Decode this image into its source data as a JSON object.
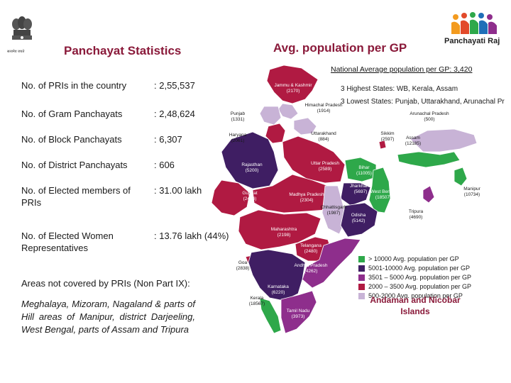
{
  "header": {
    "left_title": "Panchayat Statistics",
    "right_title": "Avg. population per GP",
    "emblem_caption": "सत्यमेव जयते",
    "logo_text": "Panchayati Raj"
  },
  "national_average": "National Average population per GP: 3,420",
  "highest": "3 Highest States: WB, Kerala, Assam",
  "lowest": "3 Lowest States: Punjab, Uttarakhand, Arunachal Pr",
  "stats": [
    {
      "label": "No. of PRIs in the country",
      "value": ": 2,55,537"
    },
    {
      "label": "No. of Gram Panchayats",
      "value": ": 2,48,624"
    },
    {
      "label": "No. of Block Panchayats",
      "value": ": 6,307"
    },
    {
      "label": "No. of District Panchayats",
      "value": ": 606"
    },
    {
      "label": "No. of Elected members of PRIs",
      "value": ": 31.00 lakh"
    },
    {
      "label": "No. of Elected Women Representatives",
      "value": ": 13.76 lakh (44%)"
    }
  ],
  "non_part_ix": {
    "heading": "Areas not covered by PRIs (Non Part IX):",
    "text": "Meghalaya, Mizoram, Nagaland & parts of Hill areas of Manipur, district Darjeeling, West Bengal, parts of Assam and Tripura"
  },
  "legend": [
    {
      "label": "> 10000 Avg. population per GP",
      "color": "#2ea84a"
    },
    {
      "label": "5001-10000 Avg. population per GP",
      "color": "#3f1e63"
    },
    {
      "label": "3501 – 5000 Avg. population per GP",
      "color": "#8e2e8c"
    },
    {
      "label": "2000 – 3500 Avg. population per GP",
      "color": "#b01a42"
    },
    {
      "label": "500-2000 Avg. population per GP",
      "color": "#c8b3d6"
    }
  ],
  "andaman": "Andaman and Nicobar Islands",
  "states": [
    {
      "name": "Jammu & Kashmir",
      "value": "(2170)",
      "category": "2000 – 3500"
    },
    {
      "name": "Himachal Pradesh",
      "value": "(1914)",
      "category": "500-2000"
    },
    {
      "name": "Punjab",
      "value": "(1331)",
      "category": "500-2000"
    },
    {
      "name": "Haryana",
      "value": "(2061)",
      "category": "2000 – 3500"
    },
    {
      "name": "Uttarakhand",
      "value": "(884)",
      "category": "500-2000"
    },
    {
      "name": "Rajasthan",
      "value": "(5200)",
      "category": "5001-10000"
    },
    {
      "name": "Uttar Pradesh",
      "value": "(2589)",
      "category": "2000 – 3500"
    },
    {
      "name": "Bihar",
      "value": "(11005)",
      "category": "> 10000"
    },
    {
      "name": "Sikkim",
      "value": "(2597)",
      "category": "2000 – 3500"
    },
    {
      "name": "Arunachal Pradesh",
      "value": "(500)",
      "category": "500-2000"
    },
    {
      "name": "Assam",
      "value": "(12185)",
      "category": "> 10000"
    },
    {
      "name": "Manipur",
      "value": "(10734)",
      "category": "> 10000"
    },
    {
      "name": "Tripura",
      "value": "(4690)",
      "category": "3501 – 5000"
    },
    {
      "name": "Jharkhand",
      "value": "(5697)",
      "category": "5001-10000"
    },
    {
      "name": "West Bengal",
      "value": "(18507)",
      "category": "> 10000"
    },
    {
      "name": "Gujarat",
      "value": "(2474)",
      "category": "2000 – 3500"
    },
    {
      "name": "Madhya Pradesh",
      "value": "(2304)",
      "category": "2000 – 3500"
    },
    {
      "name": "Chhattisgarh",
      "value": "(1987)",
      "category": "500-2000"
    },
    {
      "name": "Odisha",
      "value": "(5142)",
      "category": "5001-10000"
    },
    {
      "name": "Maharashtra",
      "value": "(2198)",
      "category": "2000 – 3500"
    },
    {
      "name": "Telangana",
      "value": "(2480)",
      "category": "2000 – 3500"
    },
    {
      "name": "Goa",
      "value": "(2838)",
      "category": "2000 – 3500"
    },
    {
      "name": "Andhra Pradesh",
      "value": "(4262)",
      "category": "3501 – 5000"
    },
    {
      "name": "Karnataka",
      "value": "(6220)",
      "category": "5001-10000"
    },
    {
      "name": "Kerala",
      "value": "(18567)",
      "category": "> 10000"
    },
    {
      "name": "Tamil Nadu",
      "value": "(3973)",
      "category": "3501 – 5000"
    }
  ]
}
